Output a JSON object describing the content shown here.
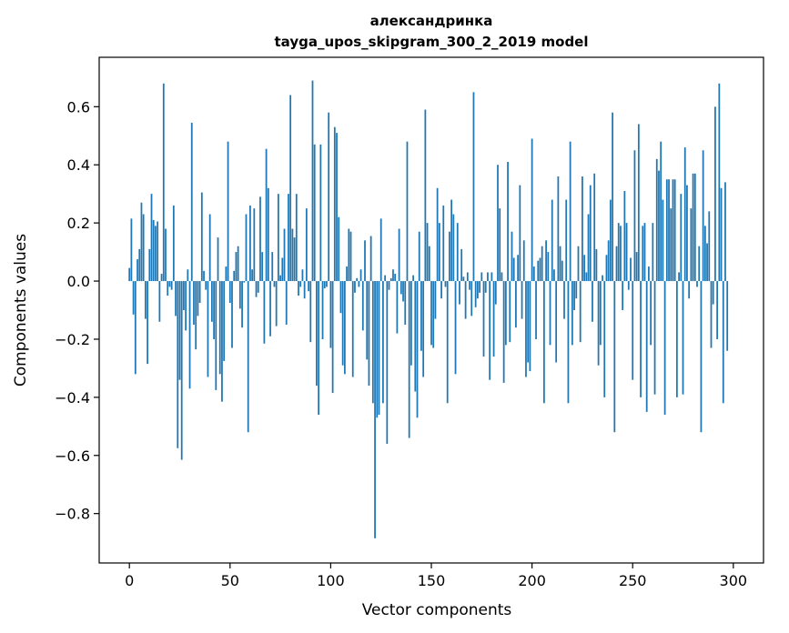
{
  "chart_data": {
    "type": "bar",
    "title": [
      "александринка",
      "tayga_upos_skipgram_300_2_2019 model"
    ],
    "xlabel": "Vector components",
    "ylabel": "Components values",
    "xlim": [
      -15,
      315
    ],
    "ylim": [
      -0.97,
      0.77
    ],
    "x_ticks": [
      0,
      50,
      100,
      150,
      200,
      250,
      300
    ],
    "x_tick_labels": [
      "0",
      "50",
      "100",
      "150",
      "200",
      "250",
      "300"
    ],
    "y_ticks": [
      -0.8,
      -0.6,
      -0.4,
      -0.2,
      0.0,
      0.2,
      0.4,
      0.6
    ],
    "y_tick_labels": [
      "−0.8",
      "−0.6",
      "−0.4",
      "−0.2",
      "0.0",
      "0.2",
      "0.4",
      "0.6"
    ],
    "grid": false,
    "bar_color": "#1f77b4",
    "values": [
      0.045,
      0.215,
      -0.115,
      -0.32,
      0.075,
      0.11,
      0.27,
      0.23,
      -0.13,
      -0.285,
      0.11,
      0.3,
      0.21,
      0.19,
      0.205,
      -0.14,
      0.025,
      0.68,
      0.18,
      -0.05,
      -0.02,
      -0.03,
      0.26,
      -0.12,
      -0.575,
      -0.34,
      -0.615,
      -0.1,
      -0.17,
      0.04,
      -0.37,
      0.545,
      -0.15,
      -0.235,
      -0.12,
      -0.075,
      0.305,
      0.035,
      -0.03,
      -0.33,
      0.23,
      -0.14,
      -0.2,
      -0.375,
      0.15,
      -0.32,
      -0.415,
      -0.275,
      0.05,
      0.48,
      -0.075,
      -0.23,
      0.035,
      0.1,
      0.12,
      -0.095,
      -0.16,
      -0.005,
      0.23,
      -0.52,
      0.26,
      0.04,
      0.25,
      -0.055,
      -0.04,
      0.29,
      0.1,
      -0.215,
      0.455,
      0.32,
      -0.19,
      0.1,
      -0.02,
      -0.155,
      0.3,
      0.02,
      0.08,
      0.18,
      -0.15,
      0.3,
      0.64,
      0.18,
      0.15,
      0.3,
      -0.05,
      -0.02,
      0.04,
      -0.06,
      0.25,
      -0.035,
      -0.21,
      0.69,
      0.47,
      -0.36,
      -0.46,
      0.47,
      -0.2,
      -0.025,
      -0.02,
      0.58,
      -0.23,
      -0.385,
      0.53,
      0.51,
      0.22,
      -0.11,
      -0.29,
      -0.32,
      0.05,
      0.18,
      0.17,
      -0.33,
      -0.04,
      0.01,
      -0.02,
      0.04,
      -0.17,
      0.14,
      -0.27,
      -0.36,
      0.155,
      -0.42,
      -0.885,
      -0.47,
      -0.46,
      0.215,
      -0.42,
      0.02,
      -0.56,
      -0.03,
      0.01,
      0.04,
      0.025,
      -0.18,
      0.18,
      -0.045,
      -0.07,
      -0.15,
      0.48,
      -0.54,
      -0.29,
      0.02,
      -0.38,
      -0.47,
      0.17,
      -0.24,
      -0.33,
      0.59,
      0.2,
      0.12,
      -0.22,
      -0.23,
      -0.13,
      0.32,
      0.2,
      -0.06,
      0.26,
      -0.02,
      -0.42,
      0.17,
      0.28,
      0.23,
      -0.32,
      0.2,
      -0.08,
      0.11,
      0.015,
      -0.13,
      0.03,
      -0.03,
      -0.12,
      0.65,
      -0.09,
      -0.06,
      -0.04,
      0.03,
      -0.26,
      -0.04,
      0.03,
      -0.34,
      0.03,
      -0.26,
      -0.08,
      0.4,
      0.25,
      0.03,
      -0.35,
      -0.22,
      0.41,
      -0.21,
      0.17,
      0.08,
      -0.16,
      0.09,
      0.33,
      -0.13,
      0.14,
      -0.33,
      -0.28,
      -0.31,
      0.49,
      0.05,
      -0.2,
      0.07,
      0.08,
      0.12,
      -0.42,
      0.14,
      0.1,
      -0.22,
      0.28,
      0.04,
      -0.28,
      0.36,
      0.12,
      0.07,
      -0.13,
      0.28,
      -0.42,
      0.48,
      -0.22,
      -0.1,
      -0.06,
      0.12,
      -0.21,
      0.36,
      0.09,
      0.03,
      0.23,
      0.33,
      -0.14,
      0.37,
      0.11,
      -0.29,
      -0.22,
      0.02,
      -0.4,
      0.09,
      0.14,
      0.28,
      0.58,
      -0.52,
      0.12,
      0.2,
      0.19,
      -0.1,
      0.31,
      0.2,
      -0.03,
      0.08,
      -0.34,
      0.45,
      0.1,
      0.54,
      -0.4,
      0.19,
      0.2,
      -0.45,
      0.05,
      -0.22,
      0.2,
      -0.39,
      0.42,
      0.38,
      0.48,
      0.28,
      -0.46,
      0.35,
      0.35,
      0.25,
      0.35,
      0.35,
      -0.4,
      0.03,
      0.3,
      -0.39,
      0.46,
      0.33,
      -0.06,
      0.25,
      0.37,
      0.37,
      -0.02,
      0.12,
      -0.52,
      0.45,
      0.19,
      0.13,
      0.24,
      -0.23,
      -0.08,
      0.6,
      -0.2,
      0.68,
      0.32,
      -0.42,
      0.34,
      -0.24
    ]
  }
}
